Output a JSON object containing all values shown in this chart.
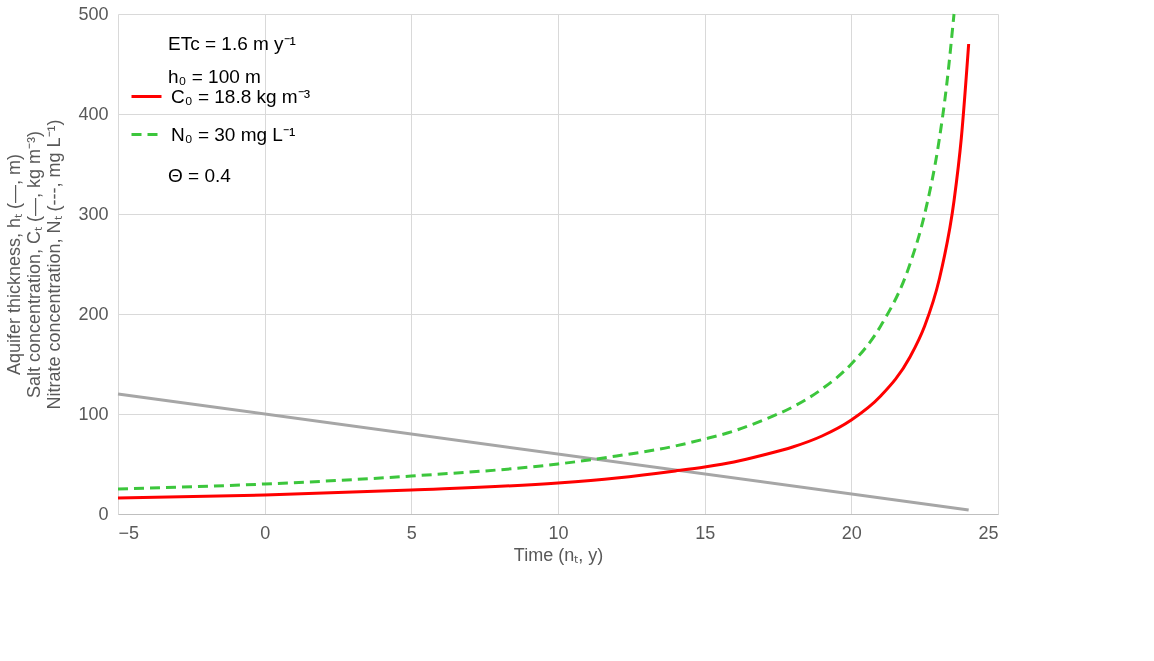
{
  "chart_data": {
    "type": "line",
    "xlabel": "Time (nₜ, y)",
    "ylabel": [
      "Aquifer thickness, hₜ (—, m)",
      "Salt concentration, Cₜ (—, kg m⁻³)",
      "Nitrate concentration, Nₜ (---, mg L⁻¹)"
    ],
    "annotations": [
      "ETc = 1.6 m y⁻¹",
      "h₀ = 100 m",
      "Θ = 0.4"
    ],
    "xlim": [
      -5,
      25
    ],
    "xticks": [
      -5,
      0,
      5,
      10,
      15,
      20,
      25
    ],
    "ylim": [
      0,
      500
    ],
    "yticks": [
      0,
      100,
      200,
      300,
      400,
      500
    ],
    "grid": true,
    "legend": "top left",
    "series": [
      {
        "color": "#a6a6a6",
        "line_style": "solid",
        "x": [
          -5,
          24
        ],
        "values": [
          120,
          4
        ]
      },
      {
        "name": "C₀ = 18.8 kg m⁻³",
        "color": "#ff0000",
        "line_style": "solid",
        "x": [
          -5,
          0,
          5,
          10,
          12,
          14,
          15,
          16,
          17,
          18,
          19,
          20,
          21,
          22,
          22.5,
          23,
          23.5,
          23.75,
          24
        ],
        "values": [
          16,
          19,
          24,
          31,
          36,
          43,
          47,
          52,
          59,
          67,
          78,
          94,
          118,
          157,
          188,
          235,
          313,
          376,
          470
        ]
      },
      {
        "name": "N₀ = 30 mg L⁻¹",
        "color": "#3cc63c",
        "line_style": "dashed",
        "x": [
          -5,
          0,
          5,
          10,
          12,
          14,
          15,
          16,
          17,
          18,
          19,
          20,
          21,
          22,
          22.5,
          23,
          23.25,
          23.5
        ],
        "values": [
          25,
          30,
          38,
          50,
          58,
          68,
          75,
          83,
          94,
          107,
          125,
          150,
          188,
          250,
          300,
          375,
          429,
          500
        ]
      }
    ]
  }
}
